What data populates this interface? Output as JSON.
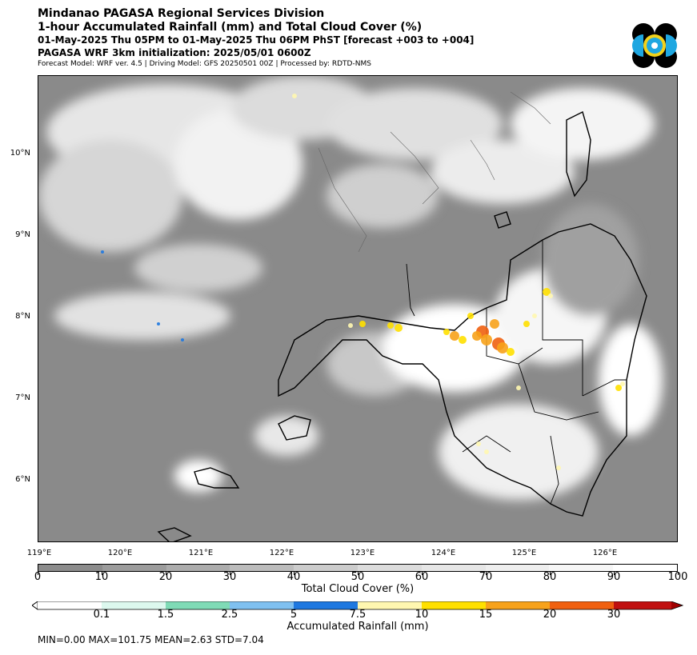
{
  "header": {
    "line1": "Mindanao PAGASA Regional Services Division",
    "line2": "1-hour Accumulated Rainfall (mm) and Total Cloud Cover (%)",
    "line3": "01-May-2025 Thu 05PM to 01-May-2025 Thu 06PM PhST [forecast +003 to +004]",
    "line4": "PAGASA WRF 3km initialization: 2025/05/01 0600Z",
    "line5": "Forecast Model: WRF ver. 4.5 | Driving Model: GFS 20250501 00Z | Processed by: RDTD-NMS"
  },
  "map": {
    "lat_labels": [
      "10°N",
      "9°N",
      "8°N",
      "7°N",
      "6°N"
    ],
    "lon_labels": [
      "119°E",
      "120°E",
      "121°E",
      "122°E",
      "123°E",
      "124°E",
      "125°E",
      "126°E"
    ],
    "extent": {
      "lon": [
        119,
        126.9
      ],
      "lat": [
        5.2,
        10.9
      ]
    }
  },
  "cloud_colorbar": {
    "label": "Total Cloud Cover (%)",
    "ticks": [
      "0",
      "10",
      "20",
      "30",
      "40",
      "50",
      "60",
      "70",
      "80",
      "90",
      "100"
    ],
    "colors": [
      "#8c8c8c",
      "#9c9c9c",
      "#acacac",
      "#bcbcbc",
      "#cccccc",
      "#dcdcdc",
      "#e6e6e6",
      "#eeeeee",
      "#f6f6f6",
      "#ffffff"
    ]
  },
  "rain_colorbar": {
    "label": "Accumulated Rainfall (mm)",
    "ticks": [
      "0.1",
      "1.5",
      "2.5",
      "5",
      "7.5",
      "10",
      "15",
      "20",
      "30"
    ],
    "colors": [
      "#dcf8ee",
      "#7fdbb6",
      "#7fc0f0",
      "#1e78e0",
      "#fff7b0",
      "#ffe000",
      "#f7a21b",
      "#f06010",
      "#c01010"
    ],
    "under_color": "#ffffff",
    "over_color": "#a00000"
  },
  "stats": "MIN=0.00   MAX=101.75   MEAN=2.63   STD=7.04",
  "logo": {
    "icon": "pagasa-logo",
    "colors": [
      "#000000",
      "#1ea7e1",
      "#f2d21b"
    ]
  }
}
